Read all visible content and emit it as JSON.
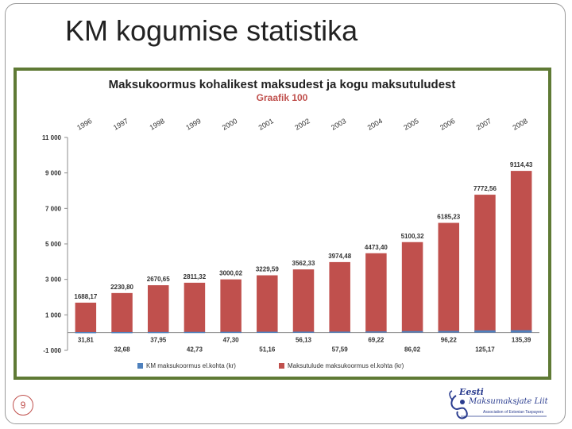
{
  "slide": {
    "title": "KM kogumise statistika",
    "page_number": "9"
  },
  "logo": {
    "line1": "Eesti",
    "line2": "Maksumaksjate Liit",
    "line3": "Association of Estonian Taxpayers"
  },
  "colors": {
    "bar_red": "#c0504d",
    "bar_blue": "#4f81bd",
    "frame_green": "#5f7a35",
    "title_red": "#c0504d"
  },
  "chart_data": {
    "type": "bar",
    "title": "Maksukoormus kohalikest maksudest ja kogu maksutuludest",
    "subtitle": "Graafik 100",
    "categories": [
      "1996",
      "1997",
      "1998",
      "1999",
      "2000",
      "2001",
      "2002",
      "2003",
      "2004",
      "2005",
      "2006",
      "2007",
      "2008"
    ],
    "series": [
      {
        "name": "KM maksukoormus el.kohta (kr)",
        "color": "#4f81bd",
        "values": [
          31.81,
          32.68,
          37.95,
          42.73,
          47.3,
          51.16,
          56.13,
          57.59,
          69.22,
          86.02,
          96.22,
          125.17,
          135.39
        ],
        "labels": [
          "31,81",
          "32,68",
          "37,95",
          "42,73",
          "47,30",
          "51,16",
          "56,13",
          "57,59",
          "69,22",
          "86,02",
          "96,22",
          "125,17",
          "135,39"
        ]
      },
      {
        "name": "Maksutulude maksukoormus el.kohta (kr)",
        "color": "#c0504d",
        "values": [
          1688.17,
          2230.8,
          2670.65,
          2811.32,
          3000.02,
          3229.59,
          3562.33,
          3974.48,
          4473.4,
          5100.32,
          6185.23,
          7772.56,
          9114.43
        ],
        "labels": [
          "1688,17",
          "2230,80",
          "2670,65",
          "2811,32",
          "3000,02",
          "3229,59",
          "3562,33",
          "3974,48",
          "4473,40",
          "5100,32",
          "6185,23",
          "7772,56",
          "9114,43"
        ]
      }
    ],
    "y_ticks": [
      -1000,
      1000,
      3000,
      5000,
      7000,
      9000,
      11000
    ],
    "y_tick_labels": [
      "-1 000",
      "1 000",
      "3 000",
      "5 000",
      "7 000",
      "9 000",
      "11 000"
    ],
    "ylim": [
      -1000,
      11000
    ],
    "grid": false,
    "legend_position": "bottom"
  }
}
